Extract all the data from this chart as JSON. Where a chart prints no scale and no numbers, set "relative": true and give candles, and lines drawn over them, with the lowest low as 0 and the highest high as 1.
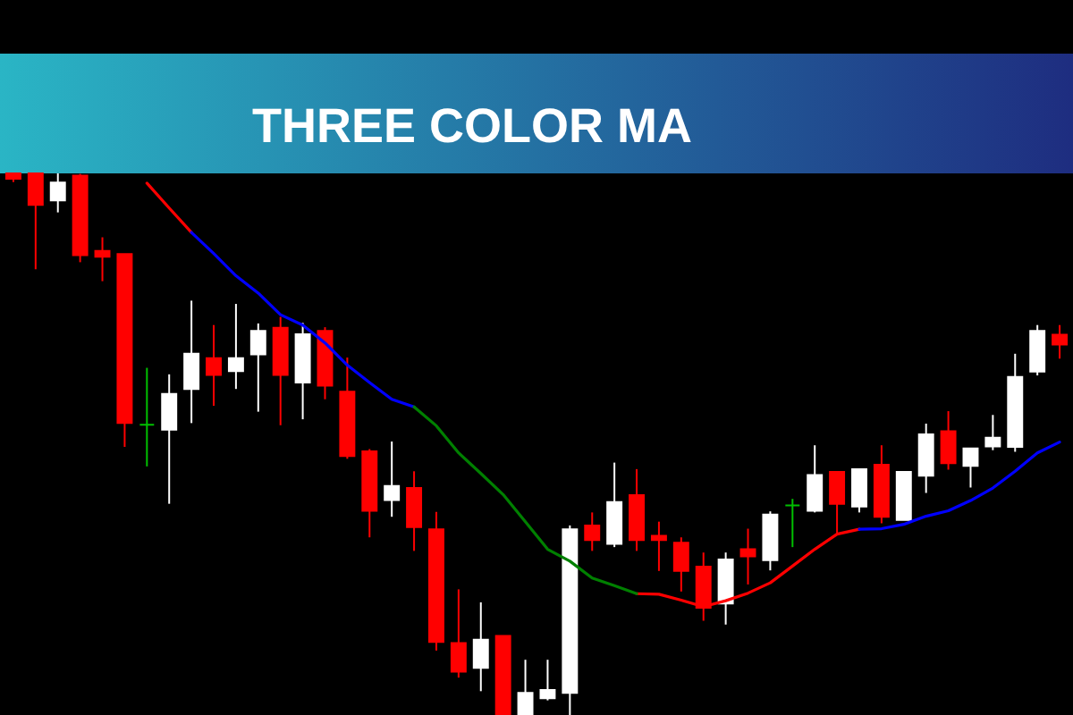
{
  "chart_data": {
    "type": "candlestick",
    "title": "THREE COLOR MA",
    "relative": true,
    "categories": [
      null,
      null,
      null,
      null,
      null,
      null,
      null,
      null,
      null,
      null,
      null,
      null,
      null,
      null,
      null,
      null,
      null,
      null,
      null,
      null,
      null,
      null,
      null,
      null,
      null,
      null,
      null,
      null,
      null,
      null,
      null,
      null,
      null,
      null,
      null,
      null,
      null,
      null,
      null,
      null,
      null,
      null,
      null,
      null,
      null,
      null,
      null,
      null
    ],
    "ohlc": [
      [
        1,
        1,
        0.984,
        0.99
      ],
      [
        1,
        1,
        0.823,
        0.942
      ],
      [
        0.95,
        1,
        0.928,
        0.983
      ],
      [
        0.996,
        0.999,
        0.836,
        0.849
      ],
      [
        0.857,
        0.882,
        0.801,
        0.846
      ],
      [
        0.851,
        0.851,
        0.495,
        0.539
      ],
      [
        0.536,
        0.641,
        0.459,
        0.536
      ],
      [
        0.527,
        0.629,
        0.39,
        0.593
      ],
      [
        0.602,
        0.765,
        0.539,
        0.667
      ],
      [
        0.659,
        0.72,
        0.571,
        0.628
      ],
      [
        0.635,
        0.759,
        0.602,
        0.659
      ],
      [
        0.666,
        0.723,
        0.56,
        0.709
      ],
      [
        0.715,
        0.735,
        0.535,
        0.628
      ],
      [
        0.614,
        0.724,
        0.546,
        0.703
      ],
      [
        0.709,
        0.716,
        0.583,
        0.608
      ],
      [
        0.597,
        0.66,
        0.473,
        0.478
      ],
      [
        0.487,
        0.491,
        0.328,
        0.377
      ],
      [
        0.397,
        0.505,
        0.366,
        0.423
      ],
      [
        0.419,
        0.45,
        0.303,
        0.347
      ],
      [
        0.343,
        0.375,
        0.119,
        0.135
      ],
      [
        0.133,
        0.232,
        0.069,
        0.08
      ],
      [
        0.087,
        0.208,
        0.044,
        0.139
      ],
      [
        0.146,
        0.146,
        0,
        0
      ],
      [
        0,
        0.102,
        0,
        0.041
      ],
      [
        0.031,
        0.102,
        0.027,
        0.046
      ],
      [
        0.041,
        0.35,
        0,
        0.343
      ],
      [
        0.35,
        0.374,
        0.303,
        0.323
      ],
      [
        0.316,
        0.466,
        0.31,
        0.393
      ],
      [
        0.406,
        0.454,
        0.303,
        0.323
      ],
      [
        0.331,
        0.357,
        0.266,
        0.323
      ],
      [
        0.318,
        0.328,
        0.228,
        0.266
      ],
      [
        0.274,
        0.3,
        0.174,
        0.198
      ],
      [
        0.206,
        0.3,
        0.167,
        0.287
      ],
      [
        0.306,
        0.344,
        0.241,
        0.293
      ],
      [
        0.286,
        0.376,
        0.267,
        0.37
      ],
      [
        0.387,
        0.399,
        0.31,
        0.387
      ],
      [
        0.377,
        0.498,
        0.374,
        0.443
      ],
      [
        0.449,
        0.449,
        0.336,
        0.39
      ],
      [
        0.385,
        0.454,
        0.374,
        0.454
      ],
      [
        0.462,
        0.498,
        0.354,
        0.366
      ],
      [
        0.36,
        0.449,
        0.36,
        0.449
      ],
      [
        0.442,
        0.538,
        0.41,
        0.518
      ],
      [
        0.524,
        0.561,
        0.453,
        0.465
      ],
      [
        0.46,
        0.492,
        0.42,
        0.492
      ],
      [
        0.496,
        0.554,
        0.489,
        0.512
      ],
      [
        0.495,
        0.667,
        0.486,
        0.624
      ],
      [
        0.634,
        0.72,
        0.627,
        0.709
      ],
      [
        0.702,
        0.72,
        0.658,
        0.684
      ]
    ],
    "colors": [
      "#ff0000",
      "#ff0000",
      "#ffffff",
      "#ff0000",
      "#ff0000",
      "#ff0000",
      "#00c000",
      "#ffffff",
      "#ffffff",
      "#ff0000",
      "#ffffff",
      "#ffffff",
      "#ff0000",
      "#ffffff",
      "#ff0000",
      "#ff0000",
      "#ff0000",
      "#ffffff",
      "#ff0000",
      "#ff0000",
      "#ff0000",
      "#ffffff",
      "#ff0000",
      "#ffffff",
      "#ffffff",
      "#ffffff",
      "#ff0000",
      "#ffffff",
      "#ff0000",
      "#ff0000",
      "#ff0000",
      "#ff0000",
      "#ffffff",
      "#ff0000",
      "#ffffff",
      "#00c000",
      "#ffffff",
      "#ff0000",
      "#ffffff",
      "#ff0000",
      "#ffffff",
      "#ffffff",
      "#ff0000",
      "#ffffff",
      "#ffffff",
      "#ffffff",
      "#ffffff",
      "#ff0000"
    ],
    "series": [
      {
        "type": "line",
        "color": "#ff0000",
        "values": [
          null,
          null,
          null,
          null,
          null,
          null,
          0.982,
          0.936,
          0.891,
          null,
          null,
          null,
          null,
          null,
          null,
          null,
          null,
          null,
          null,
          null,
          null,
          null,
          null,
          null,
          null,
          null,
          null,
          null,
          0.224,
          0.223,
          0.212,
          0.2,
          0.211,
          0.225,
          0.244,
          0.275,
          0.306,
          0.334,
          0.343,
          null,
          null,
          null,
          null,
          null,
          null,
          null,
          null,
          null
        ]
      },
      {
        "type": "line",
        "color": "#0000ff",
        "values": [
          null,
          null,
          null,
          null,
          null,
          null,
          null,
          null,
          0.891,
          0.852,
          0.811,
          0.779,
          0.739,
          0.72,
          0.687,
          0.646,
          0.614,
          0.583,
          0.569,
          null,
          null,
          null,
          null,
          null,
          null,
          null,
          null,
          null,
          null,
          null,
          null,
          null,
          null,
          null,
          null,
          null,
          null,
          null,
          0.343,
          0.344,
          0.352,
          0.367,
          0.377,
          0.396,
          0.419,
          0.45,
          0.484,
          0.504
        ]
      },
      {
        "type": "line",
        "color": "#008000",
        "values": [
          null,
          null,
          null,
          null,
          null,
          null,
          null,
          null,
          null,
          null,
          null,
          null,
          null,
          null,
          null,
          null,
          null,
          null,
          0.569,
          0.534,
          0.484,
          0.446,
          0.407,
          0.357,
          0.306,
          0.284,
          0.253,
          0.239,
          0.224,
          null,
          null,
          null,
          null,
          null,
          null,
          null,
          null,
          null,
          null,
          null,
          null,
          null,
          null,
          null,
          null,
          null,
          null,
          null
        ]
      }
    ]
  }
}
